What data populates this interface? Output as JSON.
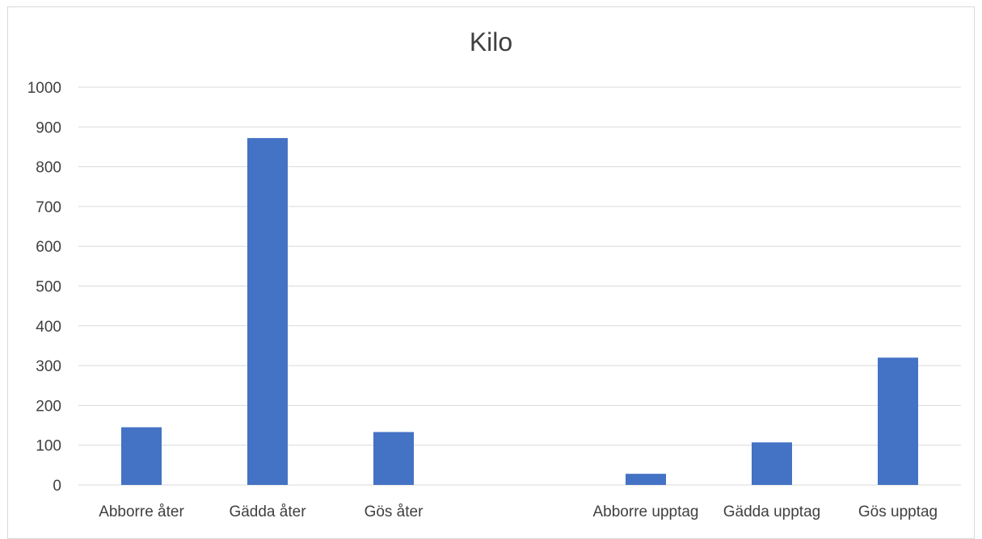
{
  "chart_data": {
    "type": "bar",
    "title": "Kilo",
    "categories": [
      "Abborre åter",
      "Gädda åter",
      "Gös åter",
      "",
      "Abborre upptag",
      "Gädda upptag",
      "Gös upptag"
    ],
    "values": [
      145,
      872,
      133,
      null,
      28,
      107,
      320
    ],
    "ylim": [
      0,
      1000
    ],
    "yticks": [
      0,
      100,
      200,
      300,
      400,
      500,
      600,
      700,
      800,
      900,
      1000
    ],
    "grid": true,
    "legend": "none",
    "bar_color": "#4472c4",
    "grid_color": "#d9d9d9"
  }
}
